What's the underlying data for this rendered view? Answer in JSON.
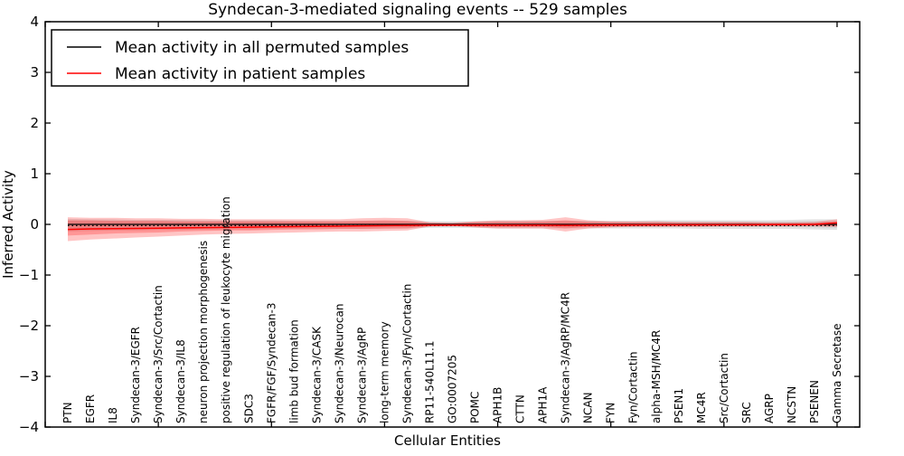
{
  "chart_data": {
    "type": "line",
    "title": "Syndecan-3-mediated signaling events -- 529 samples",
    "xlabel": "Cellular Entities",
    "ylabel": "Inferred Activity",
    "ylim": [
      -4,
      4
    ],
    "yticks": [
      4,
      3,
      2,
      1,
      0,
      -1,
      -2,
      -3,
      -4
    ],
    "ytick_labels": [
      "4",
      "3",
      "2",
      "1",
      "0",
      "−1",
      "−2",
      "−3",
      "−4"
    ],
    "xlim": [
      0,
      36
    ],
    "xticks": [
      0,
      5,
      10,
      15,
      20,
      25,
      30,
      35
    ],
    "grid": false,
    "legend_position": "upper-left",
    "legend": [
      {
        "label": "Mean activity in all permuted samples",
        "color": "#000000"
      },
      {
        "label": "Mean activity in patient samples",
        "color": "#ff0000"
      }
    ],
    "categories": [
      "PTN",
      "EGFR",
      "IL8",
      "Syndecan-3/EGFR",
      "Syndecan-3/Src/Cortactin",
      "Syndecan-3/IL8",
      "neuron projection morphogenesis",
      "positive regulation of leukocyte migration",
      "SDC3",
      "FGFR/FGF/Syndecan-3",
      "limb bud formation",
      "Syndecan-3/CASK",
      "Syndecan-3/Neurocan",
      "Syndecan-3/AgRP",
      "long-term memory",
      "Syndecan-3/Fyn/Cortactin",
      "RP11-540L11.1",
      "GO:0007205",
      "POMC",
      "APH1B",
      "CTTN",
      "APH1A",
      "Syndecan-3/AgRP/MC4R",
      "NCAN",
      "FYN",
      "Fyn/Cortactin",
      "alpha-MSH/MC4R",
      "PSEN1",
      "MC4R",
      "Src/Cortactin",
      "SRC",
      "AGRP",
      "NCSTN",
      "PSENEN",
      "Gamma Secretase"
    ],
    "series": [
      {
        "name": "Mean activity in all permuted samples",
        "color": "#000000",
        "style": "solid",
        "values": [
          0,
          0,
          0,
          0,
          0,
          0,
          0,
          0,
          0,
          0,
          0,
          0,
          0,
          0,
          0,
          0,
          0,
          0,
          0,
          0,
          0,
          0,
          0,
          0,
          0,
          0,
          0,
          0,
          0,
          0,
          0,
          0,
          0,
          0,
          0
        ]
      },
      {
        "name": "Mean activity in patient samples",
        "color": "#ff0000",
        "style": "solid",
        "values": [
          -0.1,
          -0.09,
          -0.085,
          -0.08,
          -0.075,
          -0.07,
          -0.065,
          -0.06,
          -0.055,
          -0.05,
          -0.045,
          -0.04,
          -0.035,
          -0.03,
          -0.025,
          -0.02,
          -0.015,
          -0.015,
          -0.015,
          -0.015,
          -0.015,
          -0.015,
          -0.02,
          -0.015,
          -0.012,
          -0.012,
          -0.01,
          -0.01,
          -0.01,
          -0.008,
          -0.008,
          -0.005,
          -0.005,
          0.0,
          0.03
        ]
      }
    ],
    "dotted_reference": {
      "color": "#000000",
      "style": "dotted",
      "value": -0.025
    },
    "bands": [
      {
        "name": "permuted-band-outer",
        "color": "#b3b3b3",
        "opacity": 0.38,
        "upper": [
          0.11,
          0.1,
          0.1,
          0.09,
          0.09,
          0.09,
          0.08,
          0.08,
          0.08,
          0.08,
          0.07,
          0.07,
          0.07,
          0.07,
          0.07,
          0.07,
          0.06,
          0.06,
          0.06,
          0.07,
          0.07,
          0.07,
          0.07,
          0.07,
          0.07,
          0.07,
          0.08,
          0.08,
          0.08,
          0.08,
          0.08,
          0.08,
          0.09,
          0.1,
          0.1
        ],
        "lower": [
          -0.14,
          -0.13,
          -0.12,
          -0.12,
          -0.11,
          -0.11,
          -0.1,
          -0.1,
          -0.1,
          -0.09,
          -0.09,
          -0.09,
          -0.09,
          -0.09,
          -0.08,
          -0.08,
          -0.07,
          -0.07,
          -0.07,
          -0.08,
          -0.08,
          -0.08,
          -0.08,
          -0.08,
          -0.08,
          -0.08,
          -0.08,
          -0.08,
          -0.09,
          -0.09,
          -0.09,
          -0.09,
          -0.09,
          -0.1,
          -0.11
        ]
      },
      {
        "name": "permuted-band-inner",
        "color": "#b3b3b3",
        "opacity": 0.38,
        "upper": [
          0.066,
          0.06,
          0.06,
          0.054,
          0.054,
          0.054,
          0.048,
          0.048,
          0.048,
          0.048,
          0.042,
          0.042,
          0.042,
          0.042,
          0.042,
          0.042,
          0.036,
          0.036,
          0.036,
          0.042,
          0.042,
          0.042,
          0.042,
          0.042,
          0.042,
          0.042,
          0.048,
          0.048,
          0.048,
          0.048,
          0.048,
          0.048,
          0.054,
          0.06,
          0.06
        ],
        "lower": [
          -0.084,
          -0.078,
          -0.072,
          -0.072,
          -0.066,
          -0.066,
          -0.06,
          -0.06,
          -0.06,
          -0.054,
          -0.054,
          -0.054,
          -0.054,
          -0.054,
          -0.048,
          -0.048,
          -0.042,
          -0.042,
          -0.042,
          -0.048,
          -0.048,
          -0.048,
          -0.048,
          -0.048,
          -0.048,
          -0.048,
          -0.048,
          -0.048,
          -0.054,
          -0.054,
          -0.054,
          -0.054,
          -0.054,
          -0.06,
          -0.066
        ]
      },
      {
        "name": "patient-band-outer",
        "color": "#ff2a2a",
        "opacity": 0.28,
        "upper": [
          0.14,
          0.13,
          0.13,
          0.12,
          0.12,
          0.11,
          0.11,
          0.1,
          0.1,
          0.1,
          0.1,
          0.1,
          0.1,
          0.12,
          0.13,
          0.12,
          0.04,
          0.03,
          0.06,
          0.08,
          0.08,
          0.09,
          0.14,
          0.08,
          0.06,
          0.06,
          0.06,
          0.05,
          0.05,
          0.05,
          0.05,
          0.04,
          0.04,
          0.05,
          0.1
        ],
        "lower": [
          -0.33,
          -0.3,
          -0.28,
          -0.26,
          -0.24,
          -0.22,
          -0.2,
          -0.19,
          -0.18,
          -0.17,
          -0.16,
          -0.15,
          -0.14,
          -0.14,
          -0.13,
          -0.12,
          -0.04,
          -0.03,
          -0.06,
          -0.08,
          -0.08,
          -0.08,
          -0.14,
          -0.08,
          -0.06,
          -0.05,
          -0.05,
          -0.05,
          -0.05,
          -0.04,
          -0.04,
          -0.04,
          -0.04,
          -0.04,
          -0.05
        ]
      },
      {
        "name": "patient-band-inner",
        "color": "#ff2a2a",
        "opacity": 0.3,
        "upper": [
          0.08,
          0.08,
          0.07,
          0.07,
          0.07,
          0.06,
          0.06,
          0.06,
          0.06,
          0.06,
          0.06,
          0.06,
          0.06,
          0.07,
          0.08,
          0.07,
          0.025,
          0.02,
          0.04,
          0.05,
          0.05,
          0.055,
          0.08,
          0.05,
          0.04,
          0.035,
          0.035,
          0.03,
          0.03,
          0.03,
          0.03,
          0.025,
          0.025,
          0.03,
          0.06
        ],
        "lower": [
          -0.22,
          -0.2,
          -0.18,
          -0.17,
          -0.16,
          -0.14,
          -0.13,
          -0.12,
          -0.12,
          -0.11,
          -0.1,
          -0.1,
          -0.09,
          -0.09,
          -0.085,
          -0.08,
          -0.025,
          -0.02,
          -0.04,
          -0.05,
          -0.05,
          -0.05,
          -0.08,
          -0.05,
          -0.04,
          -0.035,
          -0.03,
          -0.03,
          -0.03,
          -0.025,
          -0.025,
          -0.025,
          -0.025,
          -0.025,
          -0.035
        ]
      }
    ]
  }
}
